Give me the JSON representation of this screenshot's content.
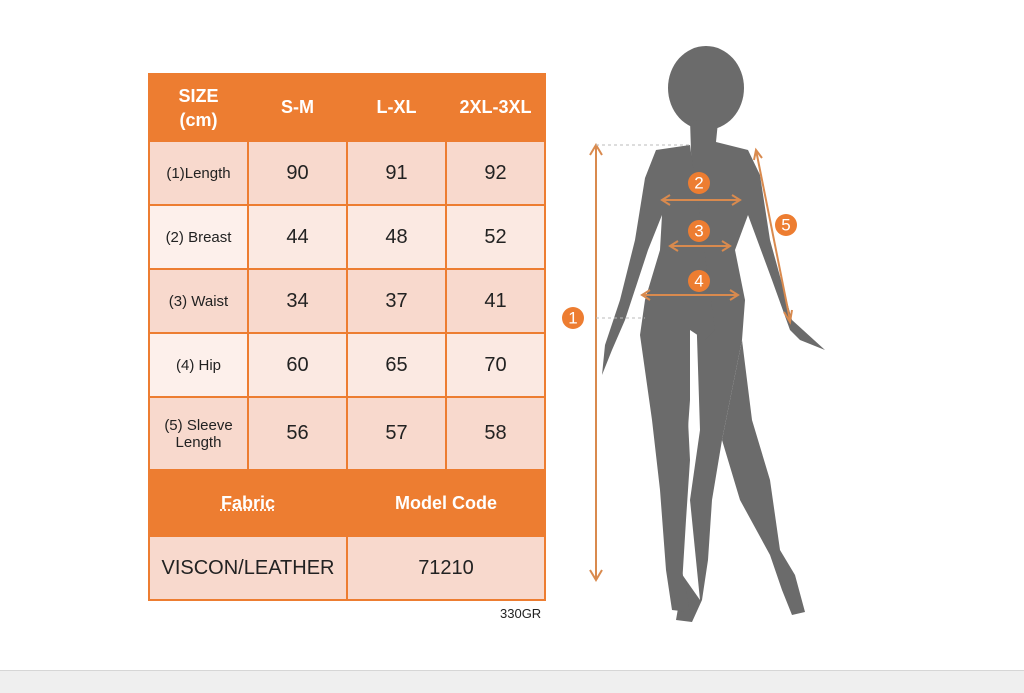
{
  "table": {
    "header": [
      "SIZE (cm)",
      "S-M",
      "L-XL",
      "2XL-3XL"
    ],
    "rows": [
      [
        "(1)Length",
        90,
        91,
        92
      ],
      [
        "(2) Breast",
        44,
        48,
        52
      ],
      [
        "(3) Waist",
        34,
        37,
        41
      ],
      [
        "(4) Hip",
        60,
        65,
        70
      ],
      [
        "(5) Sleeve Length",
        56,
        57,
        58
      ]
    ],
    "footer_header": [
      "Fabric",
      "Model Code"
    ],
    "footer_values": [
      "VISCON/LEATHER",
      "71210"
    ]
  },
  "note": "330GR",
  "figure": {
    "markers": [
      "1",
      "2",
      "3",
      "4",
      "5"
    ]
  }
}
